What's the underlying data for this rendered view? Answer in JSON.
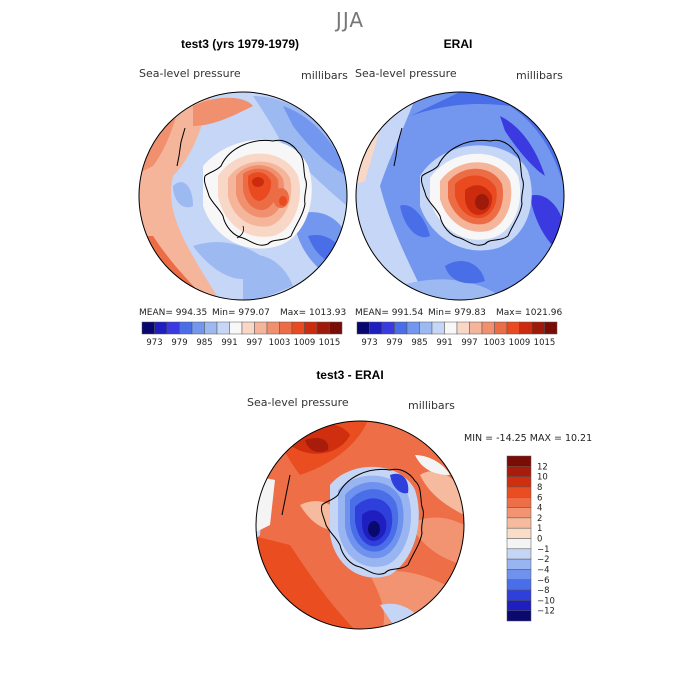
{
  "chart_data": {
    "type": "heatmap",
    "title": "JJA",
    "panels": [
      {
        "id": "model",
        "heading": "test3 (yrs 1979-1979)",
        "variable": "Sea-level pressure",
        "units": "millibars",
        "stats": {
          "mean": "MEAN= 994.35",
          "min": "Min= 979.07",
          "max": "Max= 1013.93"
        }
      },
      {
        "id": "obs",
        "heading": "ERAI",
        "variable": "Sea-level pressure",
        "units": "millibars",
        "stats": {
          "mean": "MEAN= 991.54",
          "min": "Min= 979.83",
          "max": "Max= 1021.96"
        }
      },
      {
        "id": "diff",
        "heading": "test3 - ERAI",
        "variable": "Sea-level pressure",
        "units": "millibars",
        "stats_line": "MIN = -14.25 MAX =  10.21"
      }
    ],
    "shared_colorbar": {
      "orientation": "horizontal",
      "levels": [
        973,
        976,
        979,
        982,
        985,
        988,
        991,
        994,
        997,
        1000,
        1003,
        1006,
        1009,
        1012,
        1015
      ],
      "tick_labels": [
        "973",
        "979",
        "985",
        "991",
        "997",
        "1003",
        "1009",
        "1015"
      ],
      "colors": [
        "#07076e",
        "#1f1fbf",
        "#3a3ae0",
        "#4a6ee8",
        "#7397ee",
        "#9cb9f2",
        "#c6d6f6",
        "#f7f7f7",
        "#f9d7c6",
        "#f5b59a",
        "#f0906f",
        "#ec6c46",
        "#e94a1f",
        "#cc2c0d",
        "#9e1a0a",
        "#7a0c06"
      ]
    },
    "diff_colorbar": {
      "orientation": "vertical",
      "levels": [
        -12,
        -10,
        -8,
        -6,
        -4,
        -2,
        -1,
        0,
        1,
        2,
        4,
        6,
        8,
        10,
        12
      ],
      "tick_labels": [
        "12",
        "10",
        "8",
        "6",
        "4",
        "2",
        "1",
        "0",
        "−1",
        "−2",
        "−4",
        "−6",
        "−8",
        "−10",
        "−12"
      ],
      "colors": [
        "#0a0a6e",
        "#1f1fbf",
        "#2f3fdc",
        "#4a6ee8",
        "#6f92ee",
        "#98b5f1",
        "#c5d5f6",
        "#f4f4f4",
        "#fbdcc8",
        "#f6bb9e",
        "#f29472",
        "#ee6e47",
        "#ea4d20",
        "#cf2e0f",
        "#a81c0b",
        "#7a0c06"
      ]
    }
  }
}
